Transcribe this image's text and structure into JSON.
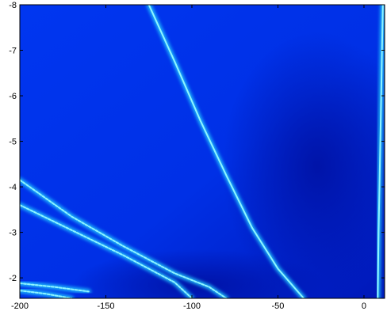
{
  "chart_data": {
    "type": "heatmap",
    "title": "",
    "xlabel": "",
    "ylabel": "",
    "xlim": [
      -200,
      12
    ],
    "ylim": [
      -1.55,
      -8
    ],
    "y_axis_direction": "reversed (-8 at top, -2 near bottom)",
    "x_ticks": [
      -200,
      -150,
      -100,
      -50,
      0
    ],
    "x_tick_labels": [
      "-200",
      "-150",
      "-100",
      "-50",
      "0"
    ],
    "y_ticks": [
      -8,
      -7,
      -6,
      -5,
      -4,
      -3,
      -2
    ],
    "y_tick_labels": [
      "-8",
      "-7",
      "-6",
      "-5",
      "-4",
      "-3",
      "-2"
    ],
    "grid": false,
    "legend": "none",
    "colormap": "jet (blue end)",
    "colors": {
      "background_blue": "#0033ee",
      "dark_blue": "#0000a8",
      "ridge_core": "#8ff4ff",
      "ridge_glow": "#22c8ff"
    },
    "ridges": [
      {
        "label": "steep diagonal ridge",
        "x": [
          -125,
          -110,
          -95,
          -80,
          -65,
          -50,
          -35
        ],
        "y": [
          -8,
          -6.75,
          -5.45,
          -4.25,
          -3.1,
          -2.2,
          -1.55
        ]
      },
      {
        "label": "near-vertical ridge near x=10",
        "x": [
          11,
          10.5,
          10,
          9.5,
          9,
          8.5,
          8
        ],
        "y": [
          -8,
          -7,
          -6,
          -5,
          -4,
          -3,
          -1.55
        ]
      },
      {
        "label": "upper crossing ridge (dotted)",
        "x": [
          -200,
          -170,
          -140,
          -110,
          -90,
          -80
        ],
        "y": [
          -4.15,
          -3.35,
          -2.7,
          -2.1,
          -1.8,
          -1.55
        ]
      },
      {
        "label": "lower crossing ridge (dotted)",
        "x": [
          -200,
          -170,
          -140,
          -110,
          -100
        ],
        "y": [
          -3.6,
          -3.05,
          -2.5,
          -1.9,
          -1.55
        ]
      },
      {
        "label": "bottom short ridge 1",
        "x": [
          -200,
          -180,
          -160
        ],
        "y": [
          -1.88,
          -1.8,
          -1.7
        ]
      },
      {
        "label": "bottom short ridge 2",
        "x": [
          -200,
          -185,
          -170
        ],
        "y": [
          -1.72,
          -1.65,
          -1.55
        ]
      }
    ]
  }
}
